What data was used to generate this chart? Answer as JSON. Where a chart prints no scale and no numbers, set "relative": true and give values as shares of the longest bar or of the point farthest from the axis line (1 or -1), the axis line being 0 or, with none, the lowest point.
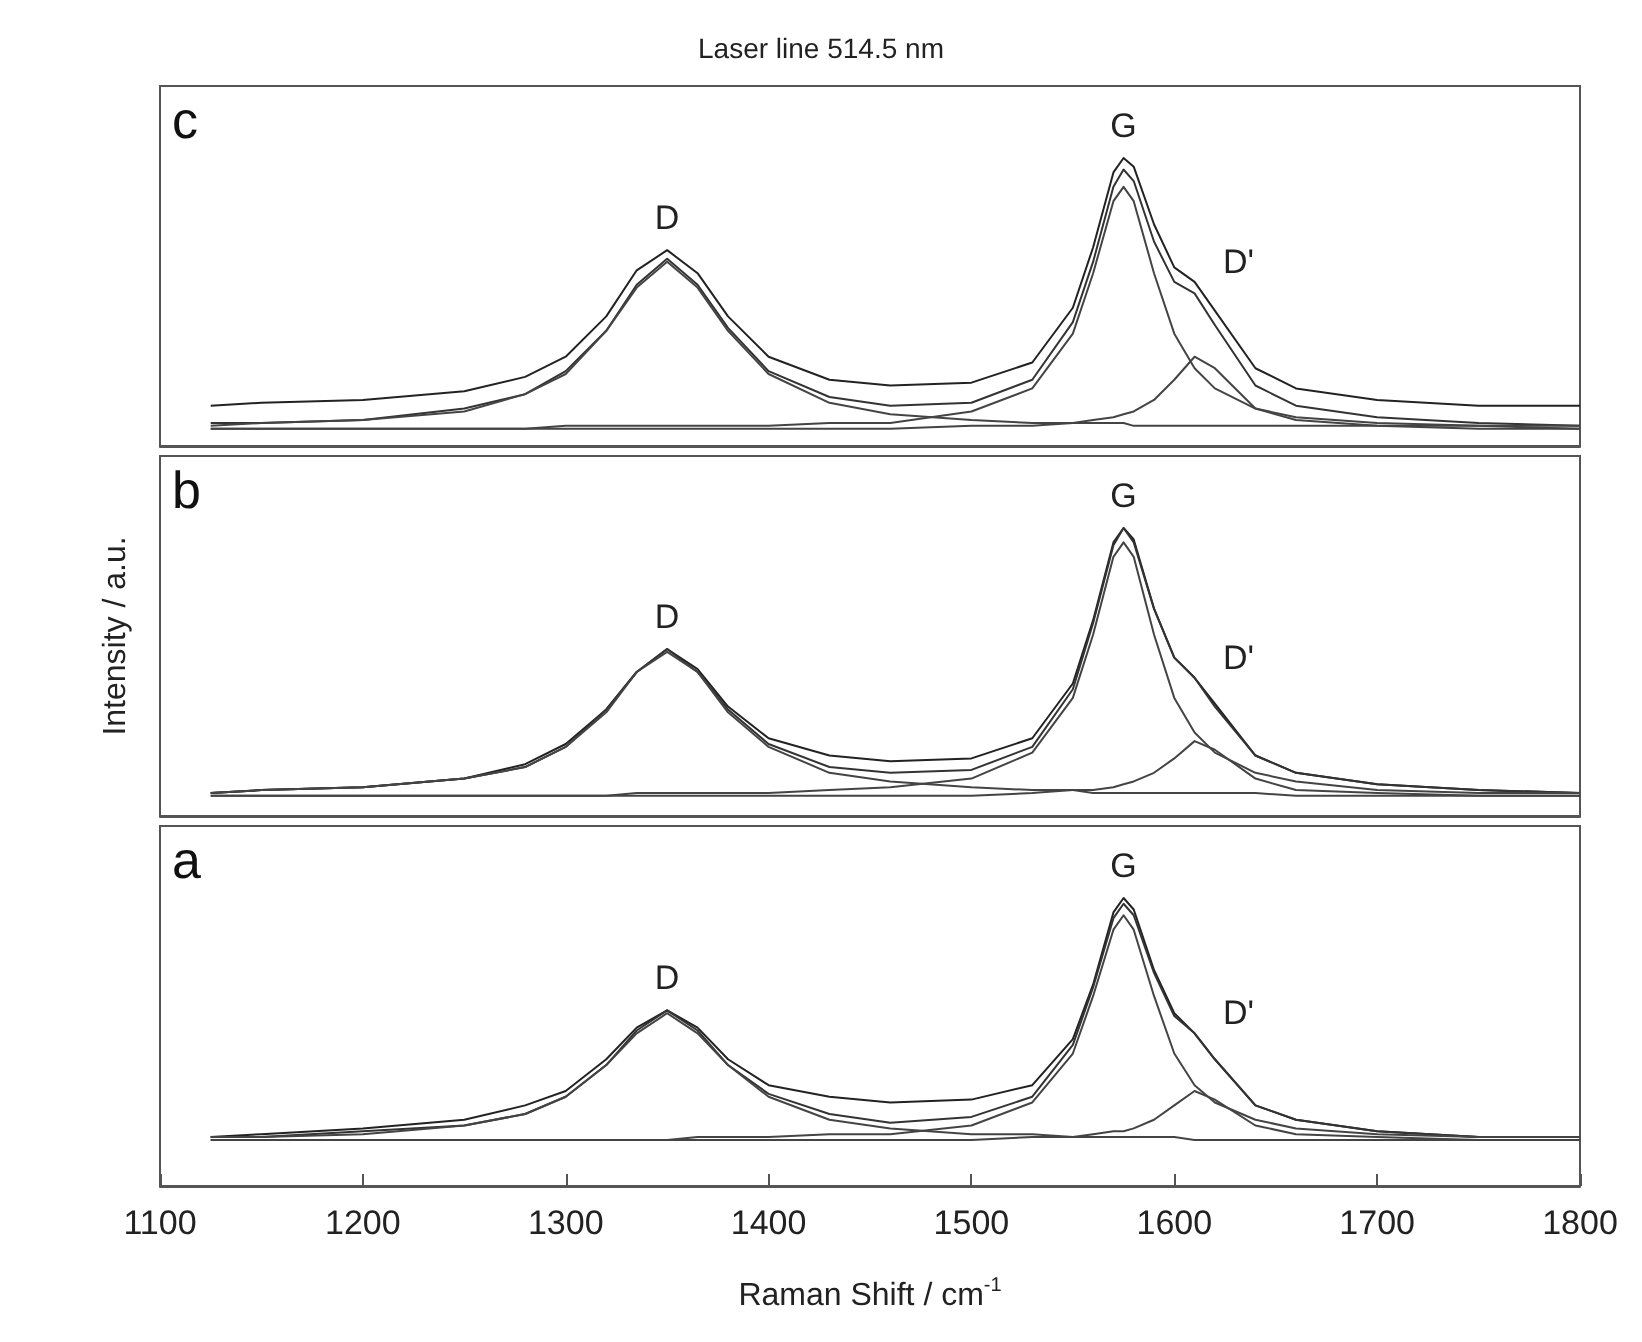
{
  "chart_data": [
    {
      "type": "line",
      "title": "Laser line 514.5 nm",
      "relative": true,
      "tick_labels": false,
      "xlim": [
        1100,
        1800
      ],
      "annotations": [
        "c",
        "D",
        "G",
        "D'"
      ],
      "x": [
        1125,
        1150,
        1200,
        1250,
        1280,
        1300,
        1320,
        1335,
        1350,
        1365,
        1380,
        1400,
        1430,
        1460,
        1500,
        1530,
        1550,
        1560,
        1570,
        1575,
        1580,
        1590,
        1600,
        1610,
        1620,
        1640,
        1660,
        1700,
        1750,
        1800
      ],
      "series": [
        {
          "color": "#222222",
          "values": [
            0.14,
            0.15,
            0.16,
            0.19,
            0.24,
            0.31,
            0.45,
            0.61,
            0.68,
            0.6,
            0.45,
            0.31,
            0.23,
            0.21,
            0.22,
            0.29,
            0.48,
            0.69,
            0.95,
            1.0,
            0.97,
            0.77,
            0.62,
            0.57,
            0.47,
            0.27,
            0.2,
            0.16,
            0.14,
            0.14
          ]
        },
        {
          "color": "#333333",
          "values": [
            0.08,
            0.08,
            0.09,
            0.13,
            0.18,
            0.26,
            0.4,
            0.56,
            0.65,
            0.56,
            0.41,
            0.26,
            0.17,
            0.14,
            0.15,
            0.23,
            0.43,
            0.64,
            0.9,
            0.96,
            0.92,
            0.71,
            0.57,
            0.53,
            0.42,
            0.21,
            0.14,
            0.1,
            0.08,
            0.07
          ]
        },
        {
          "color": "#444444",
          "values": [
            0.07,
            0.08,
            0.09,
            0.12,
            0.18,
            0.25,
            0.4,
            0.55,
            0.64,
            0.55,
            0.4,
            0.25,
            0.15,
            0.11,
            0.09,
            0.08,
            0.08,
            0.08,
            0.08,
            0.08,
            0.07,
            0.07,
            0.07,
            0.07,
            0.07,
            0.07,
            0.07,
            0.07,
            0.07,
            0.06
          ]
        },
        {
          "color": "#444444",
          "values": [
            0.06,
            0.06,
            0.06,
            0.06,
            0.06,
            0.07,
            0.07,
            0.07,
            0.07,
            0.07,
            0.07,
            0.07,
            0.08,
            0.08,
            0.12,
            0.2,
            0.39,
            0.6,
            0.85,
            0.9,
            0.85,
            0.6,
            0.39,
            0.27,
            0.2,
            0.13,
            0.1,
            0.08,
            0.07,
            0.07
          ]
        },
        {
          "color": "#444444",
          "values": [
            0.06,
            0.06,
            0.06,
            0.06,
            0.06,
            0.06,
            0.06,
            0.06,
            0.06,
            0.06,
            0.06,
            0.06,
            0.06,
            0.06,
            0.07,
            0.07,
            0.08,
            0.09,
            0.1,
            0.11,
            0.12,
            0.16,
            0.23,
            0.31,
            0.27,
            0.13,
            0.09,
            0.07,
            0.06,
            0.06
          ]
        }
      ]
    },
    {
      "type": "line",
      "ylabel": "Intensity / a.u.",
      "relative": true,
      "tick_labels": false,
      "xlim": [
        1100,
        1800
      ],
      "annotations": [
        "b",
        "D",
        "G",
        "D'"
      ],
      "x": [
        1125,
        1150,
        1200,
        1250,
        1280,
        1300,
        1320,
        1335,
        1350,
        1365,
        1380,
        1400,
        1430,
        1460,
        1500,
        1530,
        1550,
        1560,
        1570,
        1575,
        1580,
        1590,
        1600,
        1610,
        1620,
        1640,
        1660,
        1700,
        1750,
        1800
      ],
      "series": [
        {
          "color": "#222222",
          "values": [
            0.08,
            0.09,
            0.1,
            0.13,
            0.18,
            0.25,
            0.37,
            0.5,
            0.58,
            0.51,
            0.38,
            0.27,
            0.21,
            0.19,
            0.2,
            0.27,
            0.46,
            0.68,
            0.95,
            1.0,
            0.96,
            0.72,
            0.55,
            0.48,
            0.39,
            0.21,
            0.15,
            0.11,
            0.09,
            0.08
          ]
        },
        {
          "color": "#333333",
          "values": [
            0.08,
            0.09,
            0.1,
            0.13,
            0.17,
            0.24,
            0.37,
            0.5,
            0.58,
            0.5,
            0.37,
            0.25,
            0.17,
            0.15,
            0.16,
            0.24,
            0.44,
            0.67,
            0.94,
            1.0,
            0.95,
            0.72,
            0.55,
            0.48,
            0.38,
            0.21,
            0.15,
            0.11,
            0.09,
            0.08
          ]
        },
        {
          "color": "#444444",
          "values": [
            0.08,
            0.09,
            0.1,
            0.13,
            0.17,
            0.24,
            0.36,
            0.5,
            0.57,
            0.5,
            0.36,
            0.24,
            0.15,
            0.12,
            0.1,
            0.09,
            0.09,
            0.08,
            0.08,
            0.08,
            0.08,
            0.08,
            0.08,
            0.08,
            0.08,
            0.08,
            0.07,
            0.07,
            0.07,
            0.07
          ]
        },
        {
          "color": "#444444",
          "values": [
            0.07,
            0.07,
            0.07,
            0.07,
            0.07,
            0.07,
            0.07,
            0.08,
            0.08,
            0.08,
            0.08,
            0.08,
            0.09,
            0.1,
            0.13,
            0.22,
            0.41,
            0.63,
            0.9,
            0.95,
            0.9,
            0.63,
            0.41,
            0.29,
            0.22,
            0.15,
            0.12,
            0.09,
            0.08,
            0.08
          ]
        },
        {
          "color": "#444444",
          "values": [
            0.07,
            0.07,
            0.07,
            0.07,
            0.07,
            0.07,
            0.07,
            0.07,
            0.07,
            0.07,
            0.07,
            0.07,
            0.07,
            0.07,
            0.07,
            0.08,
            0.09,
            0.09,
            0.1,
            0.11,
            0.12,
            0.15,
            0.2,
            0.26,
            0.23,
            0.13,
            0.09,
            0.08,
            0.07,
            0.07
          ]
        }
      ]
    },
    {
      "type": "line",
      "xlabel": "Raman Shift / cm$^{-1}$",
      "relative": true,
      "tick_labels": "x",
      "xlim": [
        1100,
        1800
      ],
      "xticks": [
        1100,
        1200,
        1300,
        1400,
        1500,
        1600,
        1700,
        1800
      ],
      "annotations": [
        "a",
        "D",
        "G",
        "D'"
      ],
      "x": [
        1125,
        1150,
        1200,
        1250,
        1280,
        1300,
        1320,
        1335,
        1350,
        1365,
        1380,
        1400,
        1430,
        1460,
        1500,
        1530,
        1550,
        1560,
        1570,
        1575,
        1580,
        1590,
        1600,
        1610,
        1620,
        1640,
        1660,
        1700,
        1750,
        1800
      ],
      "series": [
        {
          "color": "#222222",
          "values": [
            0.17,
            0.18,
            0.2,
            0.23,
            0.28,
            0.33,
            0.44,
            0.55,
            0.61,
            0.55,
            0.44,
            0.35,
            0.31,
            0.29,
            0.3,
            0.35,
            0.51,
            0.7,
            0.95,
            1.0,
            0.96,
            0.75,
            0.6,
            0.53,
            0.44,
            0.28,
            0.23,
            0.19,
            0.17,
            0.17
          ]
        },
        {
          "color": "#333333",
          "values": [
            0.17,
            0.17,
            0.19,
            0.21,
            0.25,
            0.31,
            0.42,
            0.54,
            0.61,
            0.54,
            0.42,
            0.32,
            0.25,
            0.22,
            0.24,
            0.31,
            0.49,
            0.69,
            0.93,
            0.98,
            0.94,
            0.74,
            0.59,
            0.53,
            0.44,
            0.28,
            0.23,
            0.19,
            0.17,
            0.17
          ]
        },
        {
          "color": "#444444",
          "values": [
            0.17,
            0.17,
            0.18,
            0.21,
            0.25,
            0.31,
            0.42,
            0.53,
            0.6,
            0.53,
            0.42,
            0.31,
            0.23,
            0.2,
            0.18,
            0.18,
            0.17,
            0.17,
            0.17,
            0.17,
            0.17,
            0.17,
            0.17,
            0.16,
            0.16,
            0.16,
            0.16,
            0.16,
            0.16,
            0.16
          ]
        },
        {
          "color": "#444444",
          "values": [
            0.16,
            0.16,
            0.16,
            0.16,
            0.16,
            0.16,
            0.16,
            0.16,
            0.16,
            0.17,
            0.17,
            0.17,
            0.18,
            0.18,
            0.21,
            0.29,
            0.46,
            0.66,
            0.89,
            0.94,
            0.89,
            0.66,
            0.46,
            0.35,
            0.29,
            0.23,
            0.2,
            0.18,
            0.17,
            0.17
          ]
        },
        {
          "color": "#444444",
          "values": [
            0.16,
            0.16,
            0.16,
            0.16,
            0.16,
            0.16,
            0.16,
            0.16,
            0.16,
            0.16,
            0.16,
            0.16,
            0.16,
            0.16,
            0.16,
            0.17,
            0.17,
            0.18,
            0.19,
            0.19,
            0.2,
            0.23,
            0.28,
            0.33,
            0.3,
            0.21,
            0.18,
            0.17,
            0.16,
            0.16
          ]
        }
      ]
    }
  ]
}
